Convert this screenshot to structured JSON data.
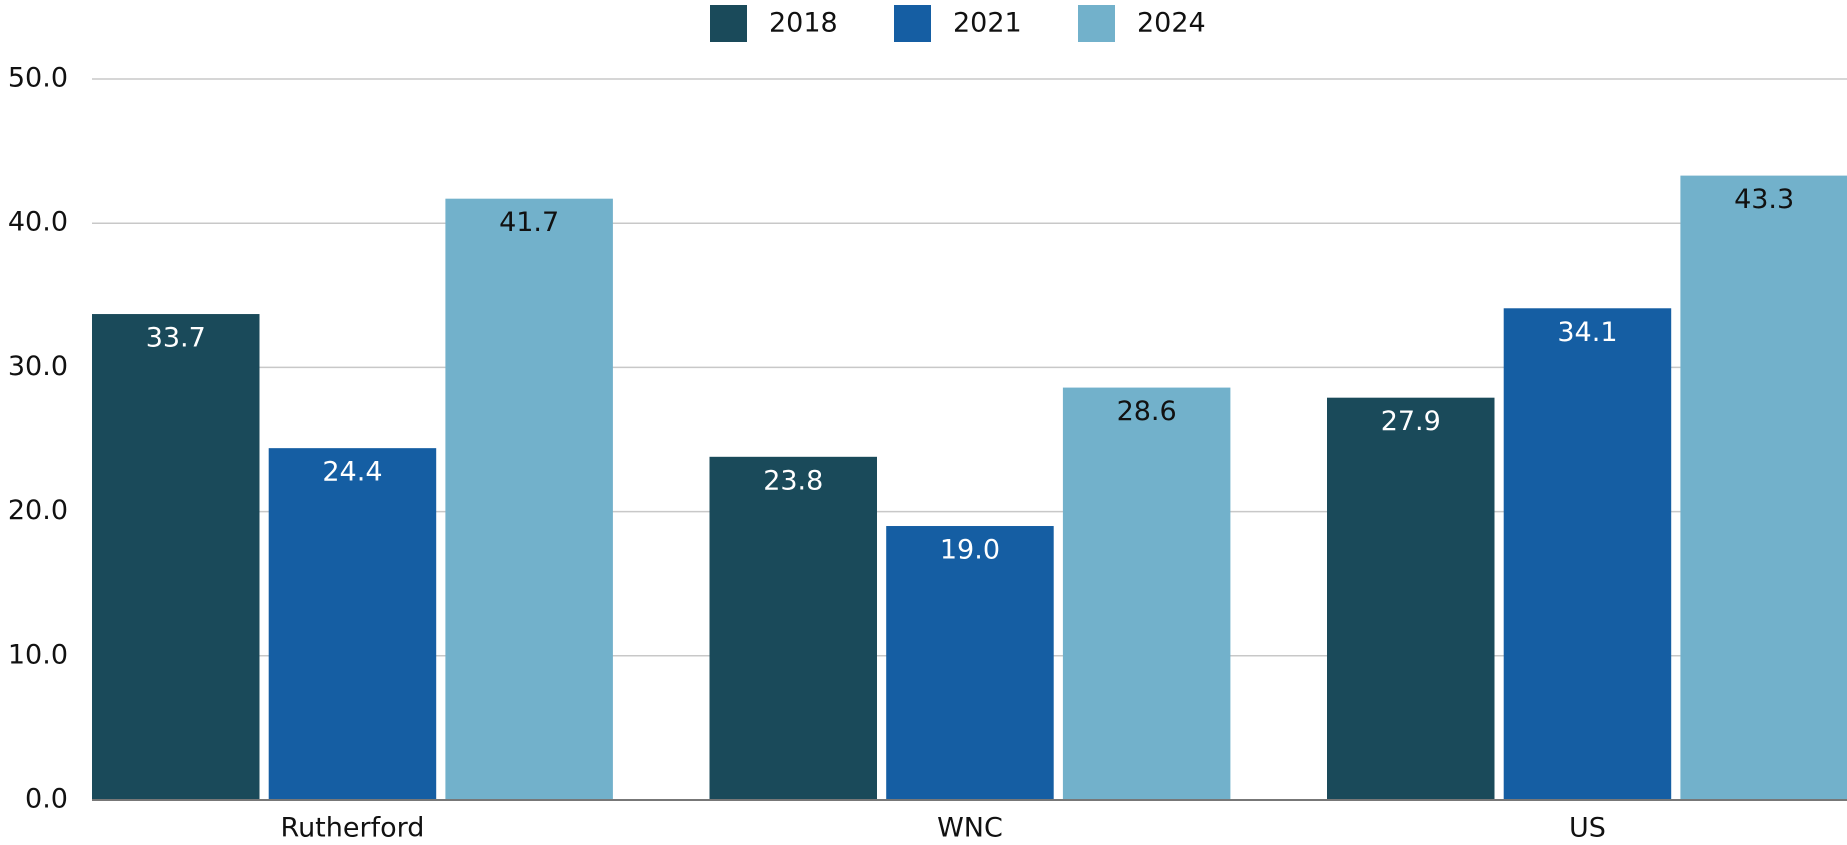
{
  "chart_data": {
    "type": "bar",
    "categories": [
      "Rutherford",
      "WNC",
      "US"
    ],
    "series": [
      {
        "name": "2018",
        "color": "#1a4a5a",
        "label_color": "#ffffff",
        "values": [
          33.7,
          23.8,
          27.9
        ],
        "value_labels": [
          "33.7",
          "23.8",
          "27.9"
        ]
      },
      {
        "name": "2021",
        "color": "#155ea3",
        "label_color": "#ffffff",
        "values": [
          24.4,
          19.0,
          34.1
        ],
        "value_labels": [
          "24.4",
          "19.0",
          "34.1"
        ]
      },
      {
        "name": "2024",
        "color": "#72b1cb",
        "label_color": "#111111",
        "values": [
          41.7,
          28.6,
          43.3
        ],
        "value_labels": [
          "41.7",
          "28.6",
          "43.3"
        ]
      }
    ],
    "ylim": [
      0,
      50
    ],
    "yticks": [
      {
        "value": 0,
        "label": "0.0"
      },
      {
        "value": 10,
        "label": "10.0"
      },
      {
        "value": 20,
        "label": "20.0"
      },
      {
        "value": 30,
        "label": "30.0"
      },
      {
        "value": 40,
        "label": "40.0"
      },
      {
        "value": 50,
        "label": "50.0"
      }
    ],
    "grid": true,
    "legend": "top"
  }
}
